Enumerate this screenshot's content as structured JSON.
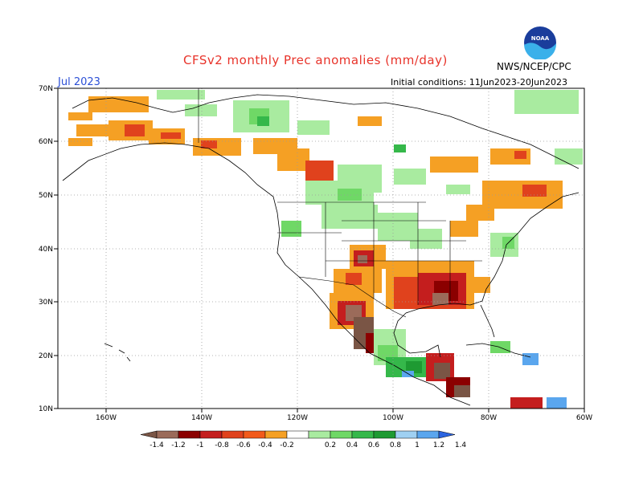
{
  "header": {
    "title": "CFSv2 monthly Prec anomalies (mm/day)",
    "month": "Jul 2023",
    "initial_conditions": "Initial conditions: 11Jun2023-20Jun2023",
    "agency": "NWS/NCEP/CPC",
    "logo_text": "NOAA"
  },
  "colors": {
    "dry_extreme": "#7a5545",
    "dry_1": "#9b6b5a",
    "dry_2": "#8b0000",
    "dry_3": "#c41e1e",
    "dry_4": "#e0421d",
    "dry_5": "#f25a1a",
    "dry_6": "#f5a024",
    "wet_1": "#a9eba0",
    "wet_2": "#6fd866",
    "wet_3": "#35b84a",
    "wet_4": "#1e9a32",
    "wet_5": "#9fd0f2",
    "wet_6": "#5aa6ee",
    "wet_extreme": "#2b64e0",
    "grid": "#9a9a9a"
  },
  "map": {
    "lon_range": [
      -170,
      -60
    ],
    "lat_range": [
      10,
      70
    ],
    "x_ticks": [
      "160W",
      "140W",
      "120W",
      "100W",
      "80W",
      "60W"
    ],
    "y_ticks": [
      "10N",
      "20N",
      "30N",
      "40N",
      "50N",
      "60N",
      "70N"
    ]
  },
  "legend": {
    "tick_labels": [
      "-1.4",
      "-1.2",
      "-1",
      "-0.8",
      "-0.6",
      "-0.4",
      "-0.2",
      "0.2",
      "0.4",
      "0.6",
      "0.8",
      "1",
      "1.2",
      "1.4"
    ],
    "colors": [
      "#7a5545",
      "#9b6b5a",
      "#8b0000",
      "#c41e1e",
      "#e0421d",
      "#f25a1a",
      "#f5a024",
      "#ffffff",
      "#a9eba0",
      "#6fd866",
      "#35b84a",
      "#1e9a32",
      "#9fd0f2",
      "#5aa6ee",
      "#2b64e0"
    ]
  }
}
